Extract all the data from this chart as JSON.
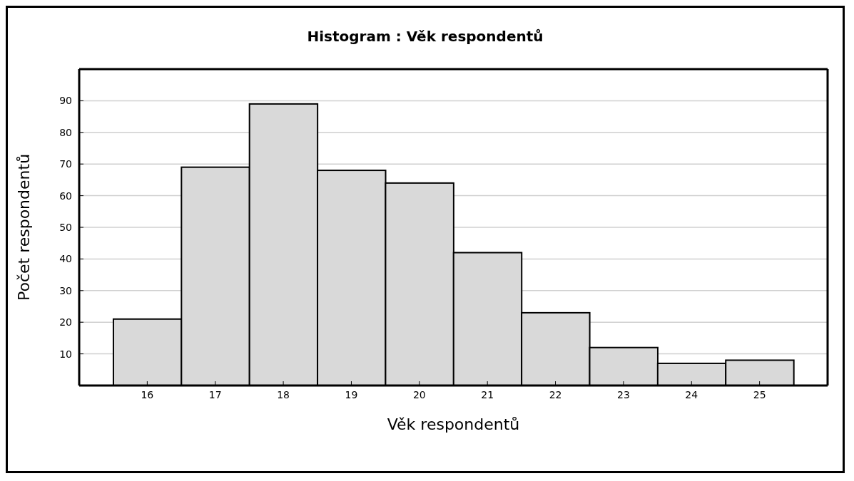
{
  "chart_data": {
    "type": "histogram",
    "title": "Histogram : Věk respondentů",
    "xlabel": "Věk respondentů",
    "ylabel": "Počet respondentů",
    "bins": [
      15.5,
      16.5,
      17.5,
      18.5,
      19.5,
      20.5,
      21.5,
      22.5,
      23.5,
      24.5,
      25.5
    ],
    "values": [
      21,
      69,
      89,
      68,
      64,
      42,
      23,
      12,
      7,
      8
    ],
    "color": "#d9d9d9",
    "xlim": [
      15,
      26
    ],
    "xticks": [
      16,
      17,
      18,
      19,
      20,
      21,
      22,
      23,
      24,
      25
    ],
    "ylim": [
      0,
      100
    ],
    "yticks": [
      10,
      20,
      30,
      40,
      50,
      60,
      70,
      80,
      90
    ],
    "grid": "y",
    "legend": false
  }
}
